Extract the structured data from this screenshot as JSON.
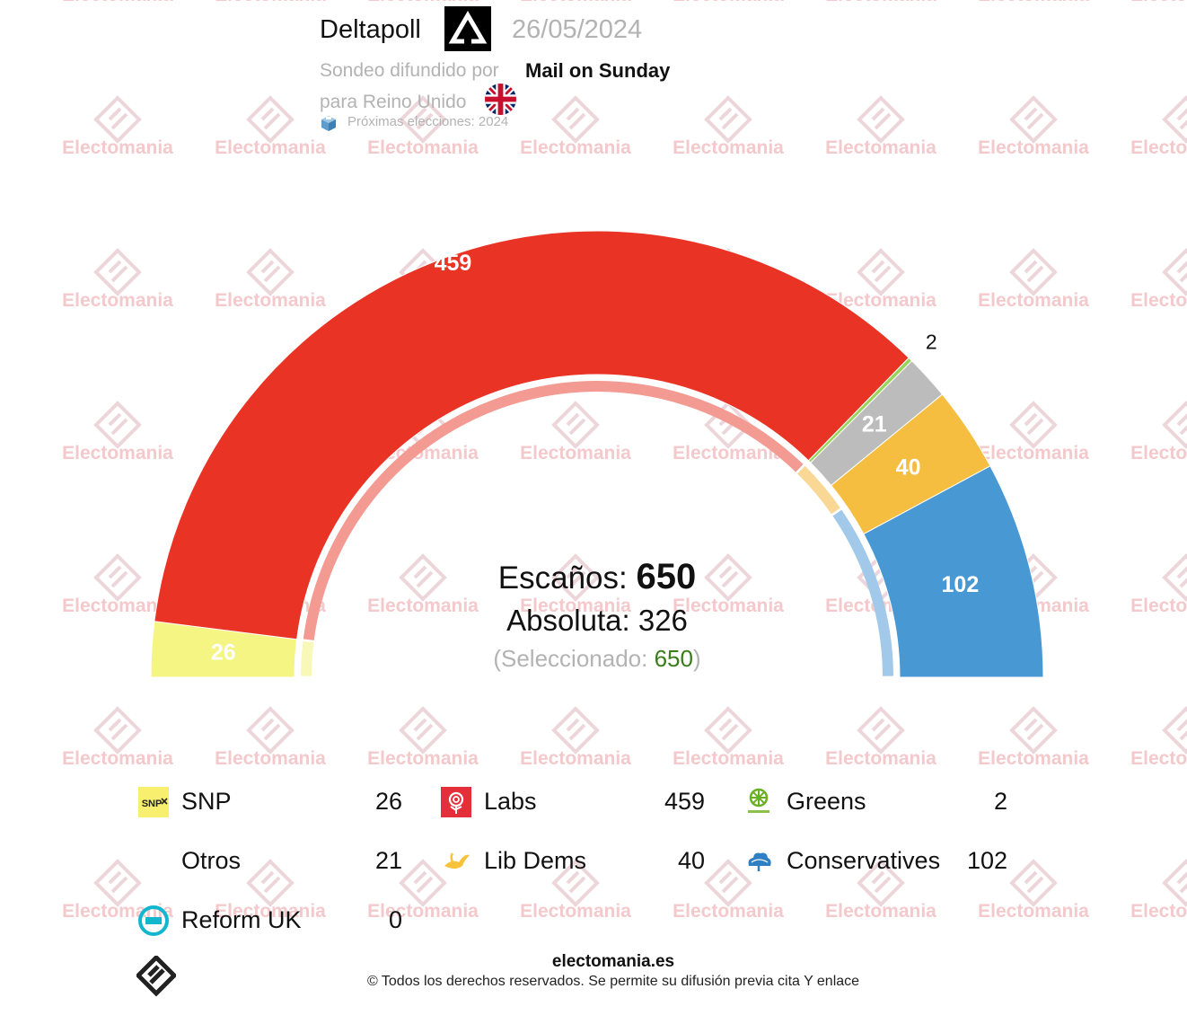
{
  "header": {
    "pollster": "Deltapoll",
    "date": "26/05/2024",
    "source_label": "Sondeo difundido por",
    "media": "Mail on Sunday",
    "for_label": "para Reino Unido",
    "next_elections": "Próximas elecciones: 2024"
  },
  "watermark": {
    "text": "Electomania"
  },
  "summary": {
    "seats_label": "Escaños:",
    "seats_total": "650",
    "absolute_label": "Absoluta:",
    "absolute_value": "326",
    "selected_open": "(Seleccionado:",
    "selected_value": "650",
    "selected_close": ")"
  },
  "chart_data": {
    "type": "parliament-semicircle",
    "total_seats": 650,
    "majority": 326,
    "selected": 650,
    "parties": [
      {
        "name": "SNP",
        "seats": 26,
        "color": "#f5f584"
      },
      {
        "name": "Labs",
        "seats": 459,
        "color": "#e93325"
      },
      {
        "name": "Greens",
        "seats": 2,
        "color": "#9bd35a"
      },
      {
        "name": "Otros",
        "seats": 21,
        "color": "#bcbcbc"
      },
      {
        "name": "Lib Dems",
        "seats": 40,
        "color": "#f5be41"
      },
      {
        "name": "Conservatives",
        "seats": 102,
        "color": "#4898d4"
      },
      {
        "name": "Reform UK",
        "seats": 0,
        "color": "#12b6cf"
      }
    ],
    "inner_ring": {
      "blocs": [
        {
          "seats": 26,
          "color": "#f8f8b8"
        },
        {
          "seats": 459,
          "color": "#f39a92"
        },
        {
          "seats": 40,
          "color": "#f9d896"
        },
        {
          "seats": 125,
          "color": "#a3c9ea"
        }
      ]
    }
  },
  "legend": [
    {
      "name": "SNP",
      "seats": "26",
      "icon": "snp-logo-icon"
    },
    {
      "name": "Labs",
      "seats": "459",
      "icon": "labour-rose-icon"
    },
    {
      "name": "Greens",
      "seats": "2",
      "icon": "green-party-icon"
    },
    {
      "name": "Otros",
      "seats": "21",
      "icon": ""
    },
    {
      "name": "Lib Dems",
      "seats": "40",
      "icon": "lib-dem-bird-icon"
    },
    {
      "name": "Conservatives",
      "seats": "102",
      "icon": "conservative-tree-icon"
    },
    {
      "name": "Reform UK",
      "seats": "0",
      "icon": "reform-uk-icon"
    }
  ],
  "footer": {
    "site": "electomania.es",
    "copyright": "© Todos los derechos reservados. Se permite su difusión previa cita Y enlace"
  }
}
